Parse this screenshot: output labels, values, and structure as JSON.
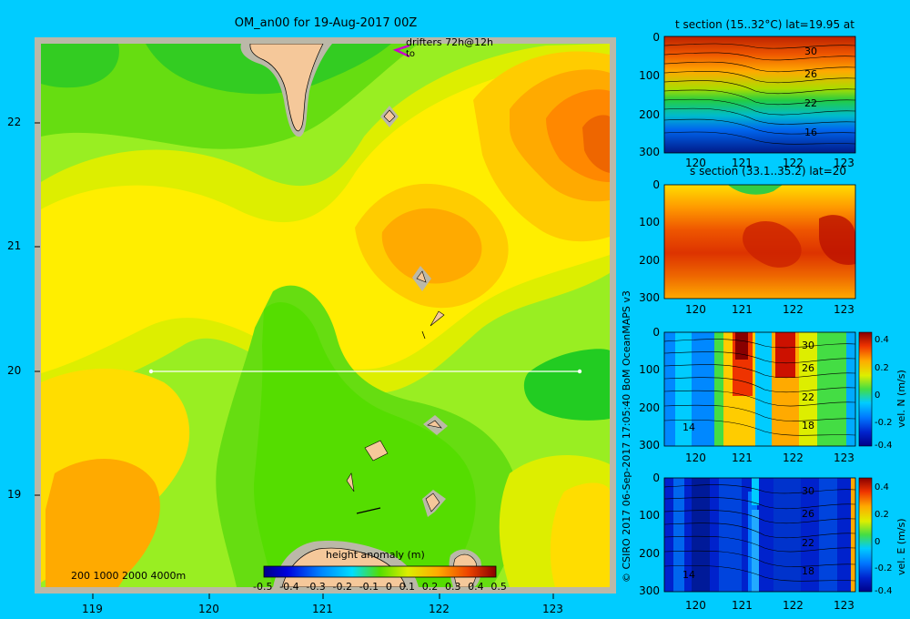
{
  "map": {
    "title": "OM_an00 for 19-Aug-2017 00Z",
    "drifter_label": "drifters 72h@12h",
    "drifter_sublabel": "to",
    "depth_scale": "200 1000 2000 4000m",
    "lat_ticks": [
      "22",
      "21",
      "20",
      "19"
    ],
    "lon_ticks": [
      "119",
      "120",
      "121",
      "122",
      "123"
    ],
    "colorbar_title": "height anomaly (m)",
    "colorbar_ticks": [
      "-0.5",
      "-0.4",
      "-0.3",
      "-0.2",
      "-0.1",
      "0",
      "0.1",
      "0.2",
      "0.3",
      "0.4",
      "0.5"
    ]
  },
  "credit": "© CSIRO 2017   06-Sep-2017 17:05:40 BoM OceanMAPS v3",
  "colors": {
    "background": "#00ccff",
    "frame": "#bbb8a8",
    "land": "#f5c89a",
    "section_line": "#ffffff",
    "drifter": "#cc00cc"
  },
  "chart_data": [
    {
      "type": "heatmap",
      "name": "sea surface height anomaly map",
      "title": "OM_an00 for 19-Aug-2017 00Z",
      "xlabel": "",
      "ylabel": "",
      "xlim": [
        118.5,
        123.5
      ],
      "ylim": [
        18.3,
        22.7
      ],
      "x_ticks": [
        119,
        120,
        121,
        122,
        123
      ],
      "y_ticks": [
        19,
        20,
        21,
        22
      ],
      "colorbar": {
        "label": "height anomaly (m)",
        "range": [
          -0.5,
          0.5
        ]
      },
      "section_line": {
        "lat": 20,
        "lon": [
          119.5,
          123.2
        ]
      },
      "approx_values": [
        {
          "lon": 118.8,
          "lat": 22.4,
          "value": 0.05
        },
        {
          "lon": 120.5,
          "lat": 22.4,
          "value": 0.1
        },
        {
          "lon": 123.3,
          "lat": 21.9,
          "value": 0.35
        },
        {
          "lon": 121.3,
          "lat": 21.0,
          "value": 0.18
        },
        {
          "lon": 122.6,
          "lat": 20.9,
          "value": 0.25
        },
        {
          "lon": 119.2,
          "lat": 19.9,
          "value": 0.22
        },
        {
          "lon": 123.0,
          "lat": 20.0,
          "value": 0.0
        },
        {
          "lon": 121.3,
          "lat": 19.3,
          "value": 0.08
        },
        {
          "lon": 119.2,
          "lat": 18.6,
          "value": 0.3
        }
      ]
    },
    {
      "type": "heatmap",
      "title": "t section (15..32°C) lat=19.95 at",
      "xlim": [
        119.5,
        123.2
      ],
      "ylim": [
        300,
        0
      ],
      "x_ticks": [
        120,
        121,
        122,
        123
      ],
      "y_ticks": [
        0,
        100,
        200,
        300
      ],
      "contour_labels": [
        "30",
        "26",
        "22",
        "16"
      ]
    },
    {
      "type": "heatmap",
      "title": "s section (33.1..35.2) lat=20",
      "xlim": [
        119.5,
        123.2
      ],
      "ylim": [
        300,
        0
      ],
      "x_ticks": [
        120,
        121,
        122,
        123
      ],
      "y_ticks": [
        0,
        100,
        200,
        300
      ]
    },
    {
      "type": "heatmap",
      "title": "",
      "xlim": [
        119.5,
        123.2
      ],
      "ylim": [
        300,
        0
      ],
      "x_ticks": [
        120,
        121,
        122,
        123
      ],
      "y_ticks": [
        0,
        100,
        200,
        300
      ],
      "contour_labels": [
        "30",
        "26",
        "22",
        "18",
        "14"
      ],
      "colorbar": {
        "label": "vel. N (m/s)",
        "range": [
          -0.4,
          0.4
        ],
        "ticks": [
          "0.4",
          "0.2",
          "0",
          "-0.2",
          "-0.4"
        ]
      }
    },
    {
      "type": "heatmap",
      "title": "",
      "xlim": [
        119.5,
        123.2
      ],
      "ylim": [
        300,
        0
      ],
      "x_ticks": [
        120,
        121,
        122,
        123
      ],
      "y_ticks": [
        0,
        100,
        200,
        300
      ],
      "contour_labels": [
        "30",
        "26",
        "22",
        "18",
        "14"
      ],
      "colorbar": {
        "label": "vel. E (m/s)",
        "range": [
          -0.4,
          0.4
        ],
        "ticks": [
          "0.4",
          "0.2",
          "0",
          "-0.2",
          "-0.4"
        ]
      }
    }
  ]
}
